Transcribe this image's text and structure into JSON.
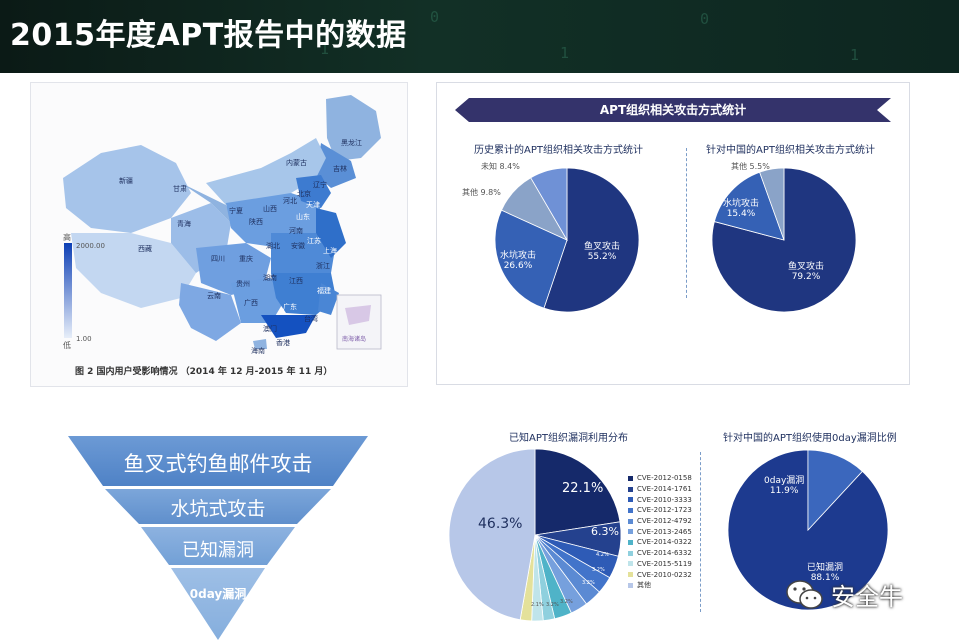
{
  "header": {
    "title": "2015年度APT报告中的数据"
  },
  "map": {
    "provinces": [
      "黑龙江",
      "吉林",
      "内蒙古",
      "辽宁",
      "新疆",
      "甘肃",
      "北京",
      "宁夏",
      "山西",
      "河北",
      "天津",
      "山东",
      "青海",
      "陕西",
      "河南",
      "江苏",
      "西藏",
      "四川",
      "重庆",
      "湖北",
      "安徽",
      "上海",
      "浙江",
      "湖南",
      "江西",
      "贵州",
      "福建",
      "云南",
      "广西",
      "广东",
      "台湾",
      "海南",
      "香港",
      "澳门"
    ],
    "legend_high_label": "高",
    "legend_low_label": "低",
    "legend_max": "2000.00",
    "legend_min": "1.00",
    "inset_label": "南海诸岛",
    "caption": "图 2  国内用户受影响情况 （2014 年 12 月-2015 年 11 月）"
  },
  "attack_stats": {
    "banner": "APT组织相关攻击方式统计",
    "left_title": "历史累计的APT组织相关攻击方式统计",
    "right_title": "针对中国的APT组织相关攻击方式统计",
    "left_labels": {
      "spear": "鱼叉攻击",
      "spear_pct": "55.2%",
      "water": "水坑攻击",
      "water_pct": "26.6%",
      "other": "其他 9.8%",
      "unknown": "未知 8.4%"
    },
    "right_labels": {
      "spear": "鱼叉攻击",
      "spear_pct": "79.2%",
      "water": "水坑攻击",
      "water_pct": "15.4%",
      "other": "其他 5.5%"
    }
  },
  "pyramid": {
    "levels": [
      "鱼叉式钓鱼邮件攻击",
      "水坑式攻击",
      "已知漏洞",
      "0day漏洞"
    ]
  },
  "vuln_stats": {
    "left_title": "已知APT组织漏洞利用分布",
    "right_title": "针对中国的APT组织使用0day漏洞比例",
    "big_label": "46.3%",
    "cve_2012_0158": "22.1%",
    "cve_2014_1761": "6.3%",
    "small_labels": [
      "4.2%",
      "3.2%",
      "3.2%",
      "3.2%",
      "3.2%",
      "2.1%"
    ],
    "legend": [
      "CVE-2012-0158",
      "CVE-2014-1761",
      "CVE-2010-3333",
      "CVE-2012-1723",
      "CVE-2012-4792",
      "CVE-2013-2465",
      "CVE-2014-0322",
      "CVE-2014-6332",
      "CVE-2015-5119",
      "CVE-2010-0232",
      "其他"
    ],
    "oday_label": "0day漏洞",
    "oday_pct": "11.9%",
    "known_label": "已知漏洞",
    "known_pct": "88.1%"
  },
  "watermark": {
    "label": "安全牛"
  },
  "chart_data": [
    {
      "type": "pie",
      "title": "历史累计的APT组织相关攻击方式统计",
      "categories": [
        "鱼叉攻击",
        "水坑攻击",
        "其他",
        "未知"
      ],
      "values": [
        55.2,
        26.6,
        9.8,
        8.4
      ]
    },
    {
      "type": "pie",
      "title": "针对中国的APT组织相关攻击方式统计",
      "categories": [
        "鱼叉攻击",
        "水坑攻击",
        "其他"
      ],
      "values": [
        79.2,
        15.4,
        5.5
      ]
    },
    {
      "type": "pie",
      "title": "已知APT组织漏洞利用分布",
      "categories": [
        "CVE-2012-0158",
        "CVE-2014-1761",
        "CVE-2010-3333",
        "CVE-2012-1723",
        "CVE-2012-4792",
        "CVE-2013-2465",
        "CVE-2014-0322",
        "CVE-2014-6332",
        "CVE-2015-5119",
        "CVE-2010-0232",
        "其他"
      ],
      "values": [
        22.1,
        6.3,
        4.2,
        3.2,
        3.2,
        3.2,
        3.2,
        2.1,
        2.1,
        2.1,
        46.3
      ]
    },
    {
      "type": "pie",
      "title": "针对中国的APT组织使用0day漏洞比例",
      "categories": [
        "已知漏洞",
        "0day漏洞"
      ],
      "values": [
        88.1,
        11.9
      ]
    }
  ]
}
